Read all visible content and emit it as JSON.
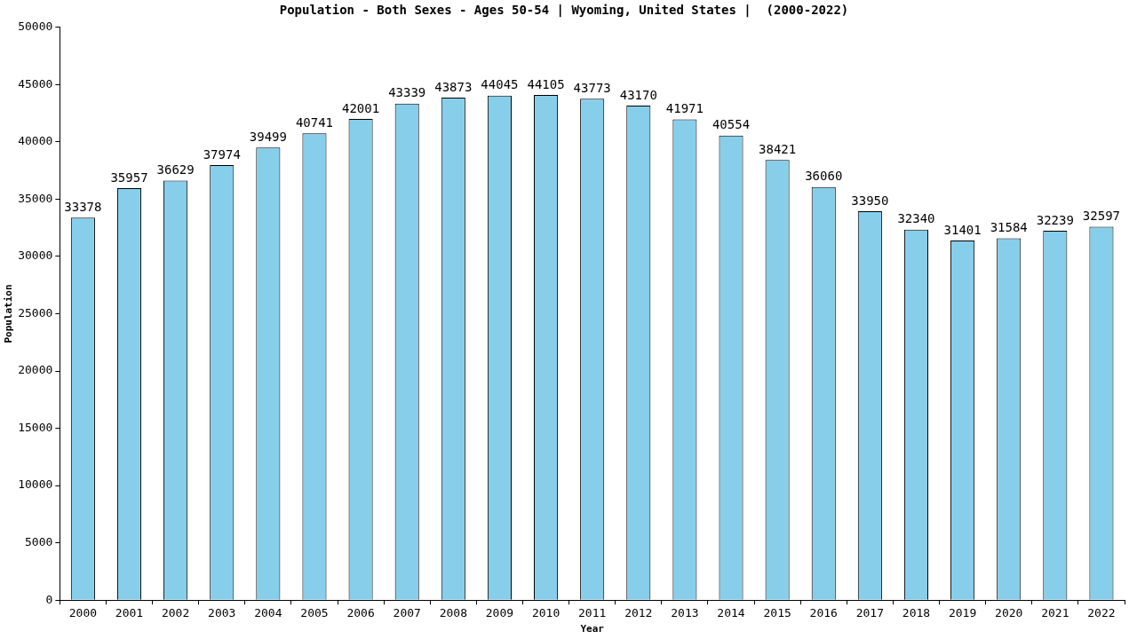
{
  "chart_data": {
    "type": "bar",
    "title": "Population - Both Sexes - Ages 50-54 | Wyoming, United States |  (2000-2022)",
    "x_label": "Year",
    "y_label": "Population",
    "categories": [
      "2000",
      "2001",
      "2002",
      "2003",
      "2004",
      "2005",
      "2006",
      "2007",
      "2008",
      "2009",
      "2010",
      "2011",
      "2012",
      "2013",
      "2014",
      "2015",
      "2016",
      "2017",
      "2018",
      "2019",
      "2020",
      "2021",
      "2022"
    ],
    "values": [
      33378,
      35957,
      36629,
      37974,
      39499,
      40741,
      42001,
      43339,
      43873,
      44045,
      44105,
      43773,
      43170,
      41971,
      40554,
      38421,
      36060,
      33950,
      32340,
      31401,
      31584,
      32239,
      32597
    ],
    "color": "#87ceeb",
    "ylim": [
      0,
      50000
    ],
    "yticks": [
      0,
      5000,
      10000,
      15000,
      20000,
      25000,
      30000,
      35000,
      40000,
      45000,
      50000
    ],
    "grid": false,
    "data_labels": true
  }
}
